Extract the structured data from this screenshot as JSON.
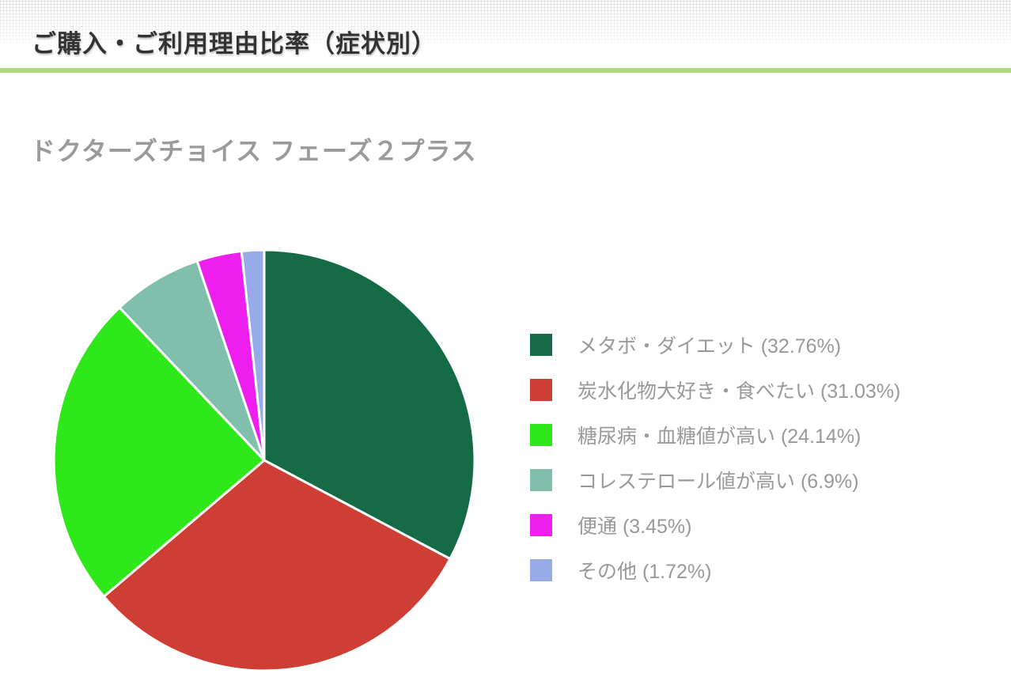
{
  "header": {
    "title": "ご購入・ご利用理由比率（症状別）"
  },
  "subtitle": "ドクターズチョイス フェーズ２プラス",
  "chart_data": {
    "type": "pie",
    "title": "ご購入・ご利用理由比率（症状別）",
    "subtitle": "ドクターズチョイス フェーズ２プラス",
    "labels": [
      "メタボ・ダイエット",
      "炭水化物大好き・食べたい",
      "糖尿病・血糖値が高い",
      "コレステロール値が高い",
      "便通",
      "その他"
    ],
    "values": [
      32.76,
      31.03,
      24.14,
      6.9,
      3.45,
      1.72
    ],
    "colors": [
      "#156b46",
      "#cf3e34",
      "#2ee819",
      "#7fbfac",
      "#ee1fee",
      "#96abe8"
    ],
    "start_angle_deg": -90,
    "direction": "clockwise",
    "slice_stroke": "#ffffff",
    "legend_position": "right"
  },
  "legend": {
    "items": [
      {
        "text": "メタボ・ダイエット (32.76%)"
      },
      {
        "text": "炭水化物大好き・食べたい (31.03%)"
      },
      {
        "text": "糖尿病・血糖値が高い (24.14%)"
      },
      {
        "text": "コレステロール値が高い (6.9%)"
      },
      {
        "text": "便通 (3.45%)"
      },
      {
        "text": "その他 (1.72%)"
      }
    ]
  },
  "colors": {
    "accent_line": "#aed97a",
    "title_text": "#333333",
    "subtitle_text": "#9a9a9a",
    "legend_text": "#999999"
  }
}
